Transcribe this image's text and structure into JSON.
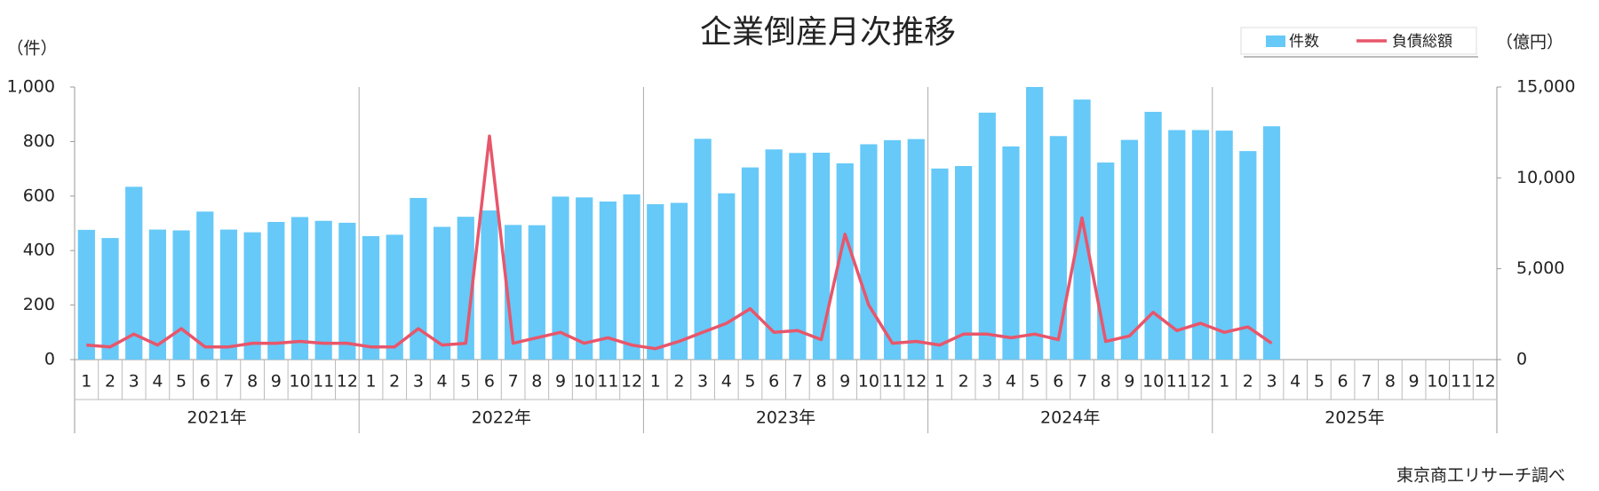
{
  "chart_data": {
    "type": "bar_line",
    "title": "企業倒産月次推移",
    "y_unit": "（件）",
    "y2_unit": "（億円）",
    "source": "東京商工リサーチ調べ",
    "categories": [
      "1",
      "2",
      "3",
      "4",
      "5",
      "6",
      "7",
      "8",
      "9",
      "10",
      "11",
      "12",
      "1",
      "2",
      "3",
      "4",
      "5",
      "6",
      "7",
      "8",
      "9",
      "10",
      "11",
      "12",
      "1",
      "2",
      "3",
      "4",
      "5",
      "6",
      "7",
      "8",
      "9",
      "10",
      "11",
      "12",
      "1",
      "2",
      "3",
      "4",
      "5",
      "6",
      "7",
      "8",
      "9",
      "10",
      "11",
      "12",
      "1",
      "2",
      "3",
      "4",
      "5",
      "6",
      "7",
      "8",
      "9",
      "10",
      "11",
      "12"
    ],
    "x_groups": [
      "2021年",
      "2022年",
      "2023年",
      "2024年",
      "2025年"
    ],
    "series": [
      {
        "name": "件数",
        "type": "bar",
        "color": "#66c9f8",
        "values": [
          476,
          446,
          634,
          477,
          474,
          543,
          477,
          467,
          505,
          523,
          509,
          502,
          453,
          458,
          593,
          487,
          524,
          547,
          494,
          493,
          598,
          595,
          580,
          606,
          570,
          575,
          810,
          610,
          705,
          771,
          758,
          759,
          720,
          790,
          805,
          809,
          701,
          710,
          906,
          782,
          1000,
          820,
          954,
          723,
          806,
          909,
          842,
          842,
          840,
          765,
          856,
          null,
          null,
          null,
          null,
          null,
          null,
          null,
          null,
          null
        ]
      },
      {
        "name": "負債総額",
        "type": "line",
        "axis": "y2",
        "color": "#e8566b",
        "values": [
          800,
          700,
          1400,
          800,
          1700,
          700,
          700,
          900,
          900,
          1000,
          900,
          900,
          700,
          700,
          1700,
          800,
          900,
          12300,
          900,
          1200,
          1500,
          900,
          1200,
          800,
          600,
          1000,
          1500,
          2000,
          2800,
          1500,
          1600,
          1100,
          6900,
          3000,
          900,
          1000,
          800,
          1400,
          1400,
          1200,
          1400,
          1100,
          7800,
          1000,
          1300,
          2600,
          1600,
          2000,
          1500,
          1800,
          900,
          null,
          null,
          null,
          null,
          null,
          null,
          null,
          null,
          null
        ]
      }
    ],
    "ylim": [
      0,
      1000
    ],
    "yticks": [
      0,
      200,
      400,
      600,
      800,
      {
        "value": 1000,
        "label": "1,000"
      }
    ],
    "y2lim": [
      0,
      15000
    ],
    "y2ticks": [
      0,
      {
        "value": 5000,
        "label": "5,000"
      },
      {
        "value": 10000,
        "label": "10,000"
      },
      {
        "value": 15000,
        "label": "15,000"
      }
    ],
    "grid": false,
    "legend": "top-right"
  }
}
